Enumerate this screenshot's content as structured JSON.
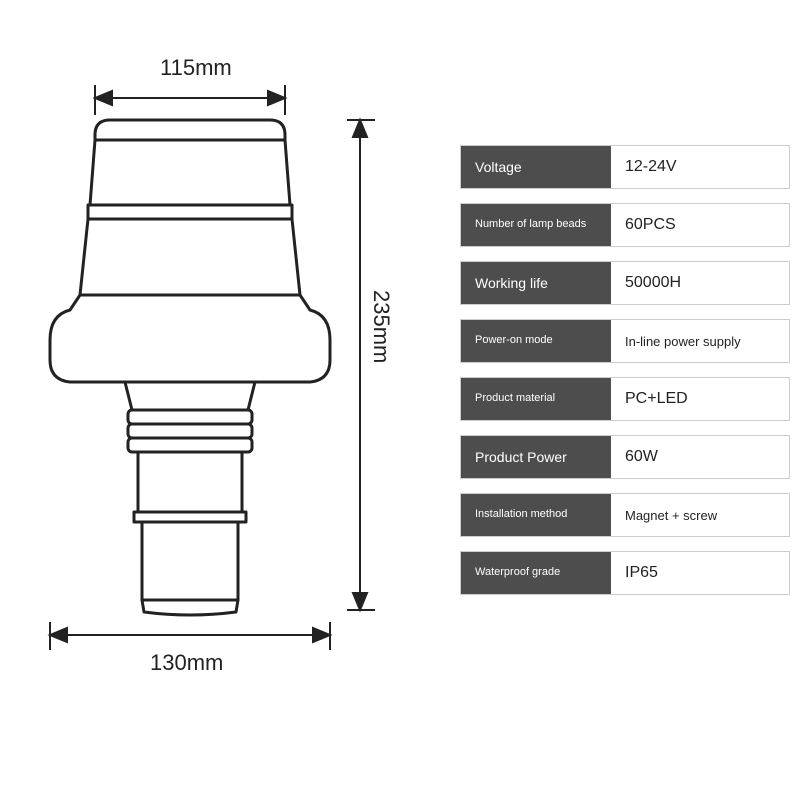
{
  "diagram": {
    "dimensions": {
      "top_width": "115mm",
      "bottom_width": "130mm",
      "height": "235mm"
    },
    "colors": {
      "outline": "#222222",
      "fill": "#ffffff",
      "background": "#ffffff",
      "spec_label_bg": "#4d4d4d",
      "spec_label_text": "#ffffff",
      "spec_value_text": "#222222",
      "border": "#cccccc"
    },
    "stroke_width": 3,
    "label_fontsize": 22
  },
  "specs": [
    {
      "label": "Voltage",
      "value": "12-24V",
      "label_small": false,
      "value_small": false
    },
    {
      "label": "Number of lamp beads",
      "value": "60PCS",
      "label_small": true,
      "value_small": false
    },
    {
      "label": "Working life",
      "value": "50000H",
      "label_small": false,
      "value_small": false
    },
    {
      "label": "Power-on mode",
      "value": "In-line power supply",
      "label_small": true,
      "value_small": true
    },
    {
      "label": "Product material",
      "value": "PC+LED",
      "label_small": true,
      "value_small": false
    },
    {
      "label": "Product Power",
      "value": "60W",
      "label_small": false,
      "value_small": false
    },
    {
      "label": "Installation method",
      "value": "Magnet + screw",
      "label_small": true,
      "value_small": true
    },
    {
      "label": "Waterproof grade",
      "value": "IP65",
      "label_small": true,
      "value_small": false
    }
  ]
}
